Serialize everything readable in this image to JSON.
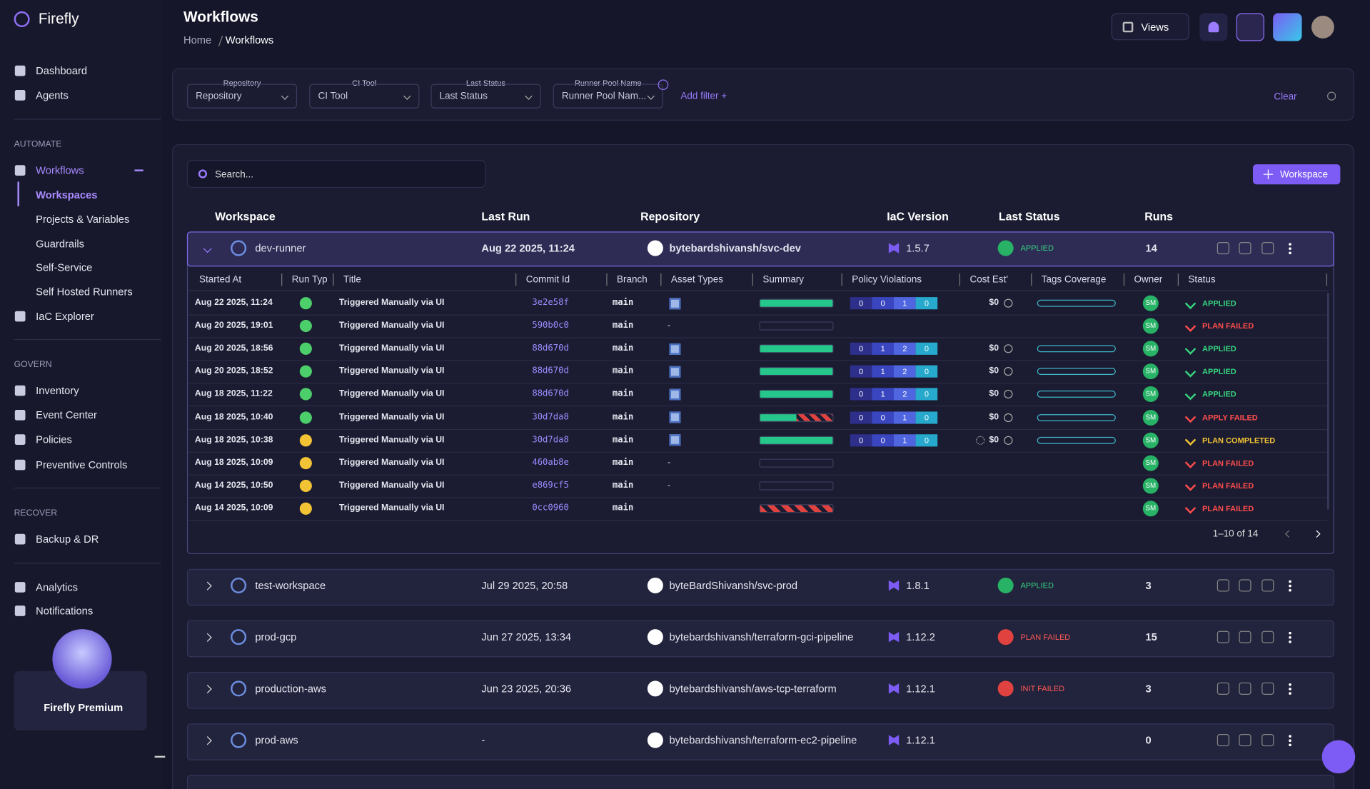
{
  "app": {
    "name": "Firefly"
  },
  "header": {
    "title": "Workflows",
    "breadcrumb": [
      "Home",
      "Workflows"
    ],
    "views": "Views"
  },
  "sidebar": {
    "top": [
      "Dashboard",
      "Agents"
    ],
    "sections": [
      {
        "title": "AUTOMATE",
        "items": [
          "Workflows",
          "Workspaces",
          "Projects & Variables",
          "Guardrails",
          "Self-Service",
          "Self Hosted Runners",
          "IaC Explorer"
        ]
      },
      {
        "title": "GOVERN",
        "items": [
          "Inventory",
          "Event Center",
          "Policies",
          "Preventive Controls"
        ]
      },
      {
        "title": "RECOVER",
        "items": [
          "Backup & DR"
        ]
      }
    ],
    "bottom": [
      "Analytics",
      "Notifications"
    ],
    "promo": "Firefly Premium"
  },
  "filters": {
    "items": [
      {
        "label": "Repository",
        "placeholder": "Repository"
      },
      {
        "label": "CI Tool",
        "placeholder": "CI Tool"
      },
      {
        "label": "Last Status",
        "placeholder": "Last Status"
      },
      {
        "label": "Runner Pool Name",
        "placeholder": "Runner Pool Nam..."
      }
    ],
    "add": "Add filter +",
    "clear": "Clear"
  },
  "toolbar": {
    "search": "Search...",
    "button": "Workspace"
  },
  "workspaces": {
    "columns": [
      "Workspace",
      "Last Run",
      "Repository",
      "IaC Version",
      "Last Status",
      "Runs"
    ],
    "rows": [
      {
        "name": "dev-runner",
        "last_run": "Aug 22 2025, 11:24",
        "repository": "bytebardshivansh/svc-dev",
        "iac_version": "1.5.7",
        "status": "APPLIED",
        "runs": 14
      },
      {
        "name": "test-workspace",
        "last_run": "Jul 29 2025, 20:58",
        "repository": "byteBardShivansh/svc-prod",
        "iac_version": "1.8.1",
        "status": "APPLIED",
        "runs": 3
      },
      {
        "name": "prod-gcp",
        "last_run": "Jun 27 2025, 13:34",
        "repository": "bytebardshivansh/terraform-gci-pipeline",
        "iac_version": "1.12.2",
        "status": "PLAN FAILED",
        "runs": 15
      },
      {
        "name": "production-aws",
        "last_run": "Jun 23 2025, 20:36",
        "repository": "bytebardshivansh/aws-tcp-terraform",
        "iac_version": "1.12.1",
        "status": "INIT FAILED",
        "runs": 3
      },
      {
        "name": "prod-aws",
        "last_run": "-",
        "repository": "bytebardshivansh/terraform-ec2-pipeline",
        "iac_version": "1.12.1",
        "status": null,
        "runs": 0
      }
    ]
  },
  "runs": {
    "columns": [
      "Started At",
      "Run Typ",
      "Title",
      "Commit Id",
      "Branch",
      "Asset Types",
      "Summary",
      "Policy Violations",
      "Cost Est'",
      "Tags Coverage",
      "Owner",
      "Status"
    ],
    "rows": [
      {
        "started": "Aug 22 2025, 11:24",
        "title": "Triggered Manually via UI",
        "commit": "3e2e58f",
        "branch": "main",
        "policy": [
          0,
          0,
          1,
          0
        ],
        "cost": "$0",
        "owner": "SM",
        "status": "APPLIED"
      },
      {
        "started": "Aug 20 2025, 19:01",
        "title": "Triggered Manually via UI",
        "commit": "590b0c0",
        "branch": "main",
        "asset_types": "-",
        "owner": "SM",
        "status": "PLAN FAILED"
      },
      {
        "started": "Aug 20 2025, 18:56",
        "title": "Triggered Manually via UI",
        "commit": "88d670d",
        "branch": "main",
        "policy": [
          0,
          1,
          2,
          0
        ],
        "cost": "$0",
        "owner": "SM",
        "status": "APPLIED"
      },
      {
        "started": "Aug 20 2025, 18:52",
        "title": "Triggered Manually via UI",
        "commit": "88d670d",
        "branch": "main",
        "policy": [
          0,
          1,
          2,
          0
        ],
        "cost": "$0",
        "owner": "SM",
        "status": "APPLIED"
      },
      {
        "started": "Aug 18 2025, 11:22",
        "title": "Triggered Manually via UI",
        "commit": "88d670d",
        "branch": "main",
        "policy": [
          0,
          1,
          2,
          0
        ],
        "cost": "$0",
        "owner": "SM",
        "status": "APPLIED"
      },
      {
        "started": "Aug 18 2025, 10:40",
        "title": "Triggered Manually via UI",
        "commit": "30d7da8",
        "branch": "main",
        "policy": [
          0,
          0,
          1,
          0
        ],
        "cost": "$0",
        "owner": "SM",
        "status": "APPLY FAILED"
      },
      {
        "started": "Aug 18 2025, 10:38",
        "title": "Triggered Manually via UI",
        "commit": "30d7da8",
        "branch": "main",
        "policy": [
          0,
          0,
          1,
          0
        ],
        "cost": "$0",
        "owner": "SM",
        "status": "PLAN COMPLETED"
      },
      {
        "started": "Aug 18 2025, 10:09",
        "title": "Triggered Manually via UI",
        "commit": "460ab8e",
        "branch": "main",
        "asset_types": "-",
        "owner": "SM",
        "status": "PLAN FAILED"
      },
      {
        "started": "Aug 14 2025, 10:50",
        "title": "Triggered Manually via UI",
        "commit": "e869cf5",
        "branch": "main",
        "asset_types": "-",
        "owner": "SM",
        "status": "PLAN FAILED"
      },
      {
        "started": "Aug 14 2025, 10:09",
        "title": "Triggered Manually via UI",
        "commit": "0cc0960",
        "branch": "main",
        "owner": "SM",
        "status": "PLAN FAILED"
      }
    ],
    "pagination": "1–10 of 14"
  }
}
